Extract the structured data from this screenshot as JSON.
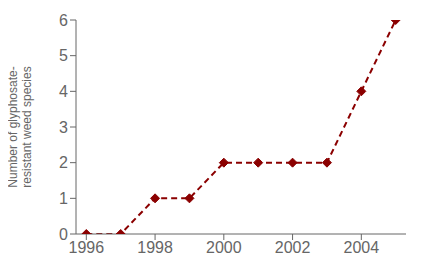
{
  "chart_data": {
    "type": "line",
    "ylabel": "Number of glyphosate-\nresistant weed species",
    "x": [
      1996,
      1997,
      1998,
      1999,
      2000,
      2001,
      2002,
      2003,
      2004,
      2005
    ],
    "values": [
      0,
      0,
      1,
      1,
      2,
      2,
      2,
      2,
      4,
      6
    ],
    "color": "#8B0000",
    "marker": "diamond",
    "line_style": "dashed",
    "xlim": [
      1995.7,
      2005.3
    ],
    "ylim": [
      0,
      6
    ],
    "xticks": [
      1996,
      1998,
      2000,
      2002,
      2004
    ],
    "yticks": [
      0,
      1,
      2,
      3,
      4,
      5,
      6
    ],
    "grid": false
  }
}
